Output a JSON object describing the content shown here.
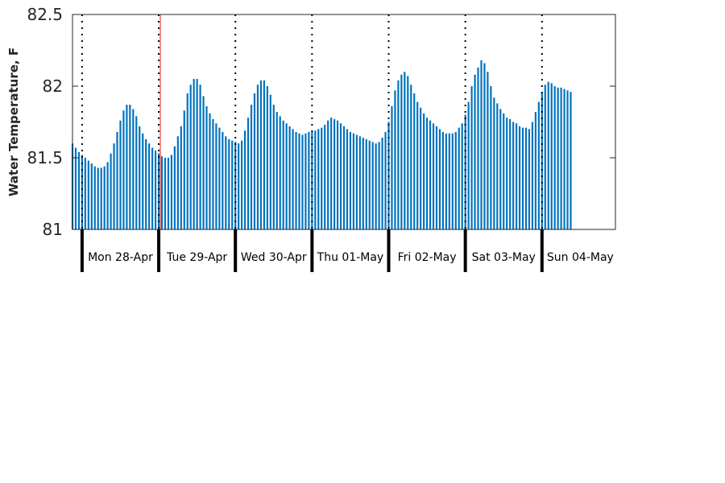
{
  "chart_data": {
    "type": "bar",
    "title": "",
    "ylabel": "Water Temperature, F",
    "xlabel": "",
    "ylim": [
      81,
      82.5
    ],
    "yticks": [
      81,
      81.5,
      82,
      82.5
    ],
    "ytick_labels": [
      "81",
      "81.5",
      "82",
      "82.5"
    ],
    "x_unit": "hour",
    "xlim": [
      "2014-04-27 21:00",
      "2014-05-04 23:00"
    ],
    "days": [
      {
        "label": "Mon 28-Apr",
        "date": "2014-04-28"
      },
      {
        "label": "Tue 29-Apr",
        "date": "2014-04-29"
      },
      {
        "label": "Wed 30-Apr",
        "date": "2014-04-30"
      },
      {
        "label": "Thu 01-May",
        "date": "2014-05-01"
      },
      {
        "label": "Fri 02-May",
        "date": "2014-05-02"
      },
      {
        "label": "Sat 03-May",
        "date": "2014-05-03"
      },
      {
        "label": "Sun 04-May",
        "date": "2014-05-04"
      }
    ],
    "marker_time": "2014-04-29 00:30",
    "series": [
      {
        "color": "#0072BD",
        "start": "2014-04-27 21:00",
        "interval_hours": 1,
        "values": [
          81.6,
          81.57,
          81.54,
          81.52,
          81.5,
          81.48,
          81.46,
          81.44,
          81.43,
          81.43,
          81.44,
          81.47,
          81.53,
          81.6,
          81.68,
          81.76,
          81.83,
          81.87,
          81.87,
          81.84,
          81.79,
          81.72,
          81.67,
          81.63,
          81.6,
          81.57,
          81.55,
          81.53,
          81.51,
          81.5,
          81.5,
          81.52,
          81.58,
          81.65,
          81.72,
          81.83,
          81.95,
          82.01,
          82.05,
          82.05,
          82.01,
          81.93,
          81.86,
          81.81,
          81.77,
          81.74,
          81.71,
          81.68,
          81.65,
          81.63,
          81.62,
          81.61,
          81.6,
          81.62,
          81.69,
          81.78,
          81.87,
          81.95,
          82.01,
          82.04,
          82.04,
          82.0,
          81.94,
          81.87,
          81.82,
          81.79,
          81.76,
          81.74,
          81.72,
          81.7,
          81.68,
          81.67,
          81.66,
          81.67,
          81.68,
          81.68,
          81.69,
          81.7,
          81.71,
          81.73,
          81.76,
          81.78,
          81.77,
          81.76,
          81.74,
          81.72,
          81.7,
          81.68,
          81.67,
          81.66,
          81.65,
          81.64,
          81.63,
          81.62,
          81.61,
          81.6,
          81.61,
          81.64,
          81.68,
          81.75,
          81.86,
          81.97,
          82.04,
          82.08,
          82.1,
          82.07,
          82.01,
          81.95,
          81.89,
          81.85,
          81.81,
          81.78,
          81.76,
          81.74,
          81.72,
          81.7,
          81.68,
          81.67,
          81.67,
          81.67,
          81.68,
          81.71,
          81.74,
          81.8,
          81.89,
          82.0,
          82.08,
          82.13,
          82.18,
          82.16,
          82.1,
          82.0,
          81.92,
          81.88,
          81.84,
          81.81,
          81.78,
          81.77,
          81.75,
          81.74,
          81.72,
          81.71,
          81.71,
          81.7,
          81.75,
          81.82,
          81.89,
          81.96,
          82.01,
          82.03,
          82.02,
          82.0,
          81.99,
          81.99,
          81.98,
          81.97,
          81.96
        ]
      }
    ]
  }
}
